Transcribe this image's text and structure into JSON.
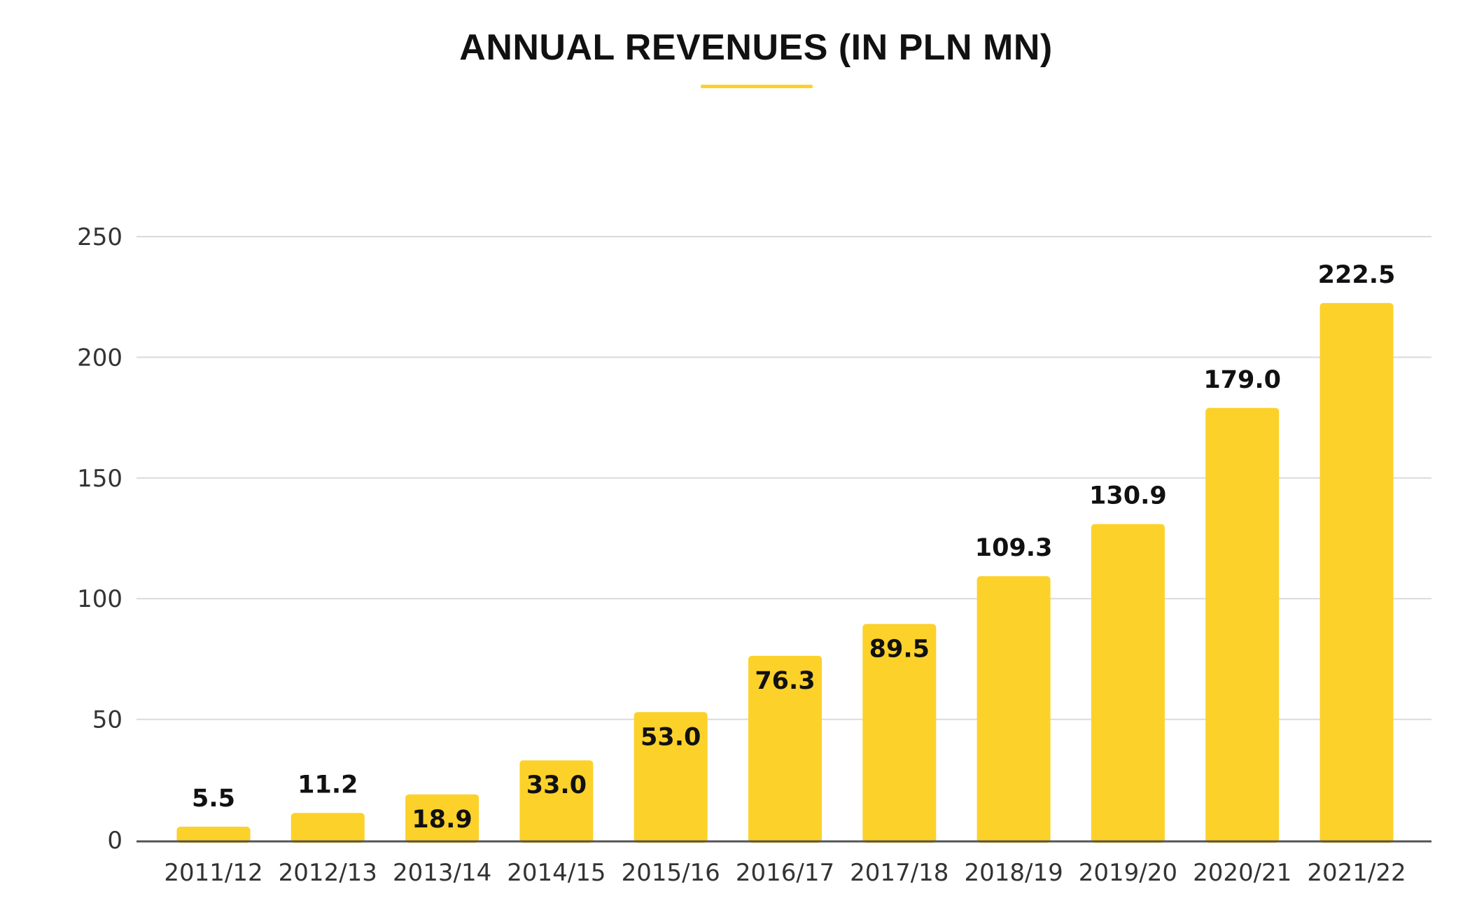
{
  "chart_data": {
    "type": "bar",
    "title": "ANNUAL REVENUES (IN PLN MN)",
    "categories": [
      "2011/12",
      "2012/13",
      "2013/14",
      "2014/15",
      "2015/16",
      "2016/17",
      "2017/18",
      "2018/19",
      "2019/20",
      "2020/21",
      "2021/22"
    ],
    "values": [
      5.5,
      11.2,
      18.9,
      33.0,
      53.0,
      76.3,
      89.5,
      109.3,
      130.9,
      179.0,
      222.5
    ],
    "data_labels": [
      "5.5",
      "11.2",
      "18.9",
      "33.0",
      "53.0",
      "76.3",
      "89.5",
      "109.3",
      "130.9",
      "179.0",
      "222.5"
    ],
    "yticks": [
      0,
      50,
      100,
      150,
      200,
      250
    ],
    "ylim": [
      0,
      250
    ],
    "xlabel": "",
    "ylabel": "",
    "grid": true,
    "legend": "none",
    "colors": {
      "bar": "#FCD12A",
      "accent": "#FCD12A",
      "grid": "#DADADA",
      "axis": "#555555"
    }
  }
}
